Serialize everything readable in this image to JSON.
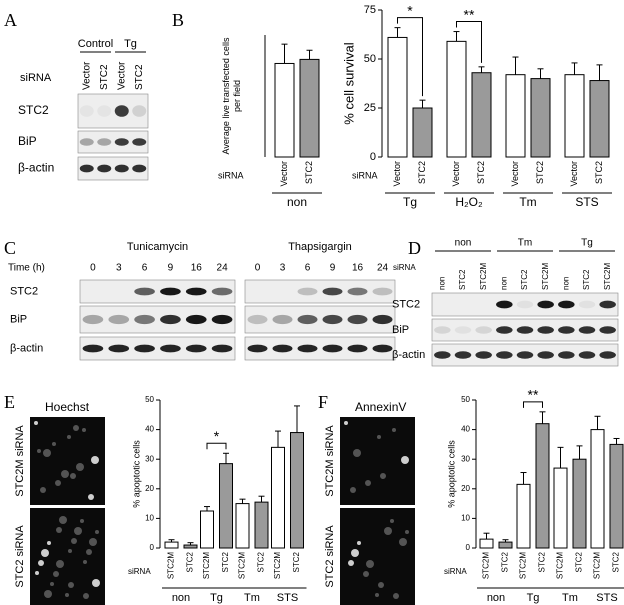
{
  "panel_labels": [
    "A",
    "B",
    "C",
    "D",
    "E",
    "F"
  ],
  "blot_a": {
    "row_header": "siRNA",
    "groups": [
      "Control",
      "Tg"
    ],
    "lanes": [
      "Vector",
      "STC2",
      "Vector",
      "STC2"
    ],
    "rows": [
      "STC2",
      "BiP",
      "β-actin"
    ]
  },
  "blot_c": {
    "time_label": "Time (h)",
    "blots": [
      "Tunicamycin",
      "Thapsigargin"
    ],
    "times": [
      "0",
      "3",
      "6",
      "9",
      "16",
      "24"
    ],
    "rows": [
      "STC2",
      "BiP",
      "β-actin"
    ]
  },
  "blot_d": {
    "row_header": "siRNA",
    "groups": [
      "non",
      "Tm",
      "Tg"
    ],
    "lanes": [
      "non",
      "STC2",
      "STC2M",
      "non",
      "STC2",
      "STC2M",
      "non",
      "STC2",
      "STC2M"
    ],
    "rows": [
      "STC2",
      "BiP",
      "β-actin"
    ]
  },
  "image_e": {
    "title": "Hoechst",
    "rows": [
      "STC2M siRNA",
      "STC2 siRNA"
    ]
  },
  "image_f": {
    "title": "AnnexinV",
    "rows": [
      "STC2M siRNA",
      "STC2 siRNA"
    ]
  },
  "chart_data": [
    {
      "type": "bar",
      "y_label": "Average live transfected cells per field",
      "x_row_label": "siRNA",
      "categories": [
        "non"
      ],
      "series": [
        {
          "name": "Vector",
          "color": "#ffffff",
          "values": [
            46
          ],
          "errors": [
            9.5
          ]
        },
        {
          "name": "STC2",
          "color": "#9a9a9a",
          "values": [
            48
          ],
          "errors": [
            4.5
          ]
        }
      ],
      "ylim": [
        0,
        60
      ]
    },
    {
      "type": "bar",
      "y_label": "% cell survival",
      "x_row_label": "siRNA",
      "categories": [
        "Tg",
        "H₂O₂",
        "Tm",
        "STS"
      ],
      "series": [
        {
          "name": "Vector",
          "color": "#ffffff",
          "values": [
            61,
            59,
            42,
            42
          ],
          "errors": [
            5,
            5,
            9,
            6
          ]
        },
        {
          "name": "STC2",
          "color": "#9a9a9a",
          "values": [
            25,
            43,
            40,
            39
          ],
          "errors": [
            4,
            3,
            5,
            8
          ]
        }
      ],
      "ylim": [
        0,
        75
      ],
      "yticks": [
        0,
        25,
        50,
        75
      ],
      "significance": [
        "*",
        "**",
        null,
        null
      ]
    },
    {
      "type": "bar",
      "y_label": "% apoptotic cells",
      "x_row_label": "siRNA",
      "categories": [
        "non",
        "Tg",
        "Tm",
        "STS"
      ],
      "series": [
        {
          "name": "STC2M",
          "color": "#ffffff",
          "values": [
            2,
            12.5,
            15,
            34
          ],
          "errors": [
            0.8,
            1.5,
            1.5,
            5.5
          ]
        },
        {
          "name": "STC2",
          "color": "#9a9a9a",
          "values": [
            1,
            28.5,
            15.5,
            39
          ],
          "errors": [
            0.8,
            3.5,
            2,
            9
          ]
        }
      ],
      "ylim": [
        0,
        50
      ],
      "yticks": [
        0,
        10,
        20,
        30,
        40,
        50
      ],
      "significance": [
        null,
        "*",
        null,
        null
      ]
    },
    {
      "type": "bar",
      "y_label": "% apoptotic cells",
      "x_row_label": "siRNA",
      "categories": [
        "non",
        "Tg",
        "Tm",
        "STS"
      ],
      "series": [
        {
          "name": "STC2M",
          "color": "#ffffff",
          "values": [
            3,
            21.5,
            27,
            40
          ],
          "errors": [
            2,
            4,
            7,
            4.5
          ]
        },
        {
          "name": "STC2",
          "color": "#9a9a9a",
          "values": [
            2,
            42,
            30,
            35
          ],
          "errors": [
            0.8,
            4,
            4.5,
            2
          ]
        }
      ],
      "ylim": [
        0,
        50
      ],
      "yticks": [
        0,
        10,
        20,
        30,
        40,
        50
      ],
      "significance": [
        null,
        "**",
        null,
        null
      ]
    }
  ]
}
